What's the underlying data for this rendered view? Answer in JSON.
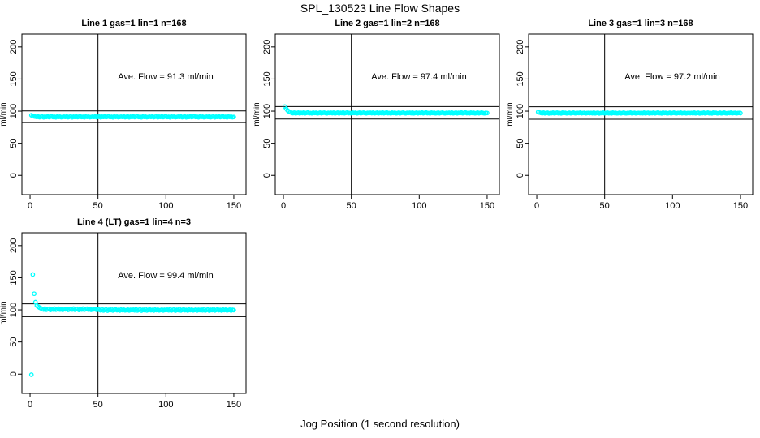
{
  "chart_data": {
    "type": "scatter",
    "title": "SPL_130523  Line Flow Shapes",
    "xlabel": "Jog Position (1 second resolution)",
    "ylabel": "ml/min",
    "point_color": "#00FFFF",
    "line_color": "#000000",
    "background_color": "#FFFFFF",
    "xlim": [
      -6,
      159
    ],
    "ylim": [
      -30,
      220
    ],
    "x_ticks": [
      0,
      50,
      100,
      150
    ],
    "y_ticks": [
      0,
      50,
      100,
      150,
      200
    ],
    "grid": false,
    "legend": "none",
    "panels": [
      {
        "title": "Line 1 gas=1 lin=1 n=168",
        "ave_label": "Ave. Flow =  91.3  ml/min",
        "ave_flow": 91.3,
        "vline_x": 50,
        "hlines": [
          100.4,
          82.2
        ],
        "x_start": 1,
        "x_step": 1,
        "y": [
          93.6,
          92.4,
          91.9,
          91.5,
          90.9,
          91.7,
          90.6,
          91.2,
          91.6,
          90.4,
          91.3,
          91.0,
          91.8,
          90.7,
          91.4,
          91.9,
          90.8,
          91.2,
          90.5,
          91.6,
          91.1,
          91.4,
          90.6,
          91.0,
          91.5,
          90.9,
          91.7,
          90.6,
          91.2,
          91.6,
          90.4,
          91.3,
          91.0,
          91.8,
          90.7,
          91.4,
          91.9,
          90.8,
          91.2,
          90.5,
          91.6,
          91.1,
          91.4,
          90.6,
          91.0,
          91.5,
          90.9,
          91.7,
          90.6,
          91.2,
          91.6,
          90.4,
          91.3,
          91.0,
          91.8,
          90.7,
          91.4,
          91.9,
          90.8,
          91.2,
          90.5,
          91.6,
          91.1,
          91.4,
          90.6,
          91.0,
          91.5,
          90.9,
          91.7,
          90.6,
          91.2,
          91.6,
          90.4,
          91.3,
          91.0,
          91.8,
          90.7,
          91.4,
          91.9,
          90.8,
          91.2,
          90.5,
          91.6,
          91.1,
          91.4,
          90.6,
          91.0,
          91.5,
          90.9,
          91.7,
          90.6,
          91.2,
          91.6,
          90.4,
          91.3,
          91.0,
          91.8,
          90.7,
          91.4,
          91.9,
          90.8,
          91.2,
          90.5,
          91.6,
          91.1,
          91.4,
          90.6,
          91.0,
          91.5,
          90.9,
          91.7,
          90.6,
          91.2,
          91.6,
          90.4,
          91.3,
          91.0,
          91.8,
          90.7,
          91.4,
          91.9,
          90.8,
          91.2,
          90.5,
          91.6,
          91.1,
          91.4,
          90.6,
          91.0,
          91.5,
          90.9,
          91.7,
          90.6,
          91.2,
          91.6,
          90.4,
          91.3,
          91.0,
          91.8,
          90.7,
          91.4,
          91.9,
          90.8,
          91.2,
          90.5,
          91.6,
          91.1,
          91.4,
          90.6,
          91.0
        ]
      },
      {
        "title": "Line 2 gas=1 lin=2 n=168",
        "ave_label": "Ave. Flow =  97.4  ml/min",
        "ave_flow": 97.4,
        "vline_x": 50,
        "hlines": [
          107.1,
          87.7
        ],
        "x_start": 1,
        "x_step": 1,
        "y": [
          107.2,
          103.8,
          101.2,
          99.6,
          98.4,
          97.5,
          96.9,
          97.8,
          96.7,
          97.2,
          97.7,
          96.6,
          97.4,
          97.0,
          97.9,
          96.8,
          97.3,
          98.0,
          96.9,
          97.2,
          96.6,
          97.7,
          97.1,
          97.5,
          96.7,
          97.0,
          97.6,
          96.8,
          97.3,
          97.8,
          97.0,
          96.7,
          97.4,
          97.1,
          97.5,
          96.9,
          97.8,
          96.7,
          97.2,
          97.7,
          96.6,
          97.4,
          97.0,
          97.9,
          96.8,
          97.3,
          98.0,
          96.9,
          97.2,
          96.6,
          97.7,
          97.1,
          97.5,
          96.7,
          97.0,
          97.6,
          96.8,
          97.3,
          97.8,
          97.0,
          96.7,
          97.4,
          97.1,
          97.5,
          96.9,
          97.8,
          96.7,
          97.2,
          97.7,
          96.6,
          97.4,
          97.0,
          97.9,
          96.8,
          97.3,
          98.0,
          96.9,
          97.2,
          96.6,
          97.7,
          97.1,
          97.5,
          96.7,
          97.0,
          97.6,
          96.8,
          97.3,
          97.8,
          97.0,
          96.7,
          97.4,
          97.1,
          97.5,
          96.9,
          97.8,
          96.7,
          97.2,
          97.7,
          96.6,
          97.4,
          97.0,
          97.9,
          96.8,
          97.3,
          98.0,
          96.9,
          97.2,
          96.6,
          97.7,
          97.1,
          97.5,
          96.7,
          97.0,
          97.6,
          96.8,
          97.3,
          97.8,
          97.0,
          96.7,
          97.4,
          97.1,
          97.5,
          96.9,
          97.8,
          96.7,
          97.2,
          97.7,
          96.6,
          97.4,
          97.0,
          97.9,
          96.8,
          97.3,
          98.0,
          96.9,
          97.2,
          96.6,
          97.7,
          97.1,
          97.5,
          96.7,
          97.0,
          97.6,
          96.8,
          97.3,
          97.8,
          97.0,
          96.7,
          97.4,
          97.1
        ]
      },
      {
        "title": "Line 3 gas=1 lin=3 n=168",
        "ave_label": "Ave. Flow =  97.2  ml/min",
        "ave_flow": 97.2,
        "vline_x": 50,
        "hlines": [
          106.9,
          87.5
        ],
        "x_start": 1,
        "x_step": 1,
        "y": [
          98.6,
          97.9,
          97.3,
          96.8,
          97.6,
          96.6,
          97.1,
          97.5,
          96.5,
          97.2,
          96.9,
          97.7,
          96.7,
          97.2,
          97.8,
          96.8,
          97.1,
          96.5,
          97.6,
          97.0,
          97.4,
          96.6,
          96.9,
          97.5,
          96.7,
          97.2,
          97.7,
          96.9,
          96.6,
          97.3,
          97.0,
          97.6,
          96.8,
          97.1,
          97.4,
          96.7,
          97.0,
          97.3,
          96.9,
          97.3,
          96.8,
          97.6,
          96.6,
          97.1,
          97.5,
          96.5,
          97.2,
          96.9,
          97.7,
          96.7,
          97.2,
          97.8,
          96.8,
          97.1,
          96.5,
          97.6,
          97.0,
          97.4,
          96.6,
          96.9,
          97.5,
          96.7,
          97.2,
          97.7,
          96.9,
          96.6,
          97.3,
          97.0,
          97.6,
          96.8,
          97.1,
          97.4,
          96.7,
          97.0,
          97.3,
          96.9,
          97.3,
          96.8,
          97.6,
          96.6,
          97.1,
          97.5,
          96.5,
          97.2,
          96.9,
          97.7,
          96.7,
          97.2,
          97.8,
          96.8,
          97.1,
          96.5,
          97.6,
          97.0,
          97.4,
          96.6,
          96.9,
          97.5,
          96.7,
          97.2,
          97.7,
          96.9,
          96.6,
          97.3,
          97.0,
          97.6,
          96.8,
          97.1,
          97.4,
          96.7,
          97.0,
          97.3,
          96.9,
          97.3,
          96.8,
          97.6,
          96.6,
          97.1,
          97.5,
          96.5,
          97.2,
          96.9,
          97.7,
          96.7,
          97.2,
          97.8,
          96.8,
          97.1,
          96.5,
          97.6,
          97.0,
          97.4,
          96.6,
          96.9,
          97.5,
          96.7,
          97.2,
          97.7,
          96.9,
          96.6,
          97.3,
          97.0,
          97.6,
          96.8,
          97.1,
          97.4,
          96.7,
          97.0,
          97.3,
          96.9
        ]
      },
      {
        "title": "Line 4 (LT) gas=1 lin=4 n=3",
        "ave_label": "Ave. Flow =  99.4  ml/min",
        "ave_flow": 99.4,
        "vline_x": 50,
        "hlines": [
          109.3,
          89.5
        ],
        "x_start": 1,
        "x_step": 1,
        "y": [
          -1.0,
          155.0,
          125.0,
          112.0,
          106.5,
          104.8,
          103.5,
          102.4,
          101.5,
          100.6,
          101.9,
          100.2,
          101.1,
          101.7,
          99.9,
          101.2,
          100.5,
          102.0,
          100.3,
          101.0,
          101.8,
          100.4,
          100.9,
          100.0,
          101.6,
          100.8,
          101.3,
          100.1,
          100.7,
          101.5,
          100.6,
          101.9,
          100.2,
          101.1,
          101.7,
          99.9,
          101.2,
          100.5,
          102.0,
          100.3,
          101.0,
          101.8,
          100.4,
          100.9,
          100.0,
          101.6,
          100.8,
          101.3,
          100.1,
          100.7,
          100.2,
          99.3,
          100.8,
          99.0,
          99.9,
          100.5,
          98.8,
          100.1,
          99.5,
          100.9,
          99.1,
          99.8,
          100.7,
          99.4,
          99.9,
          98.9,
          100.4,
          99.6,
          100.2,
          99.2,
          99.7,
          100.3,
          99.0,
          100.0,
          99.5,
          100.2,
          99.3,
          100.8,
          99.0,
          99.9,
          100.5,
          98.8,
          100.1,
          99.5,
          100.9,
          99.1,
          99.8,
          100.7,
          99.4,
          99.9,
          98.9,
          100.4,
          99.6,
          100.2,
          99.2,
          99.7,
          100.3,
          99.0,
          100.0,
          99.5,
          100.2,
          99.3,
          100.8,
          99.0,
          99.9,
          100.5,
          98.8,
          100.1,
          99.5,
          100.9,
          99.1,
          99.8,
          100.7,
          99.4,
          99.9,
          98.9,
          100.4,
          99.6,
          100.2,
          99.2,
          99.7,
          100.3,
          99.0,
          100.0,
          99.5,
          100.2,
          99.3,
          100.8,
          99.0,
          99.9,
          100.5,
          98.8,
          100.1,
          99.5,
          100.9,
          99.1,
          99.8,
          100.7,
          99.4,
          99.9,
          98.9,
          100.4,
          99.6,
          100.2,
          99.2,
          99.7,
          100.3,
          99.0,
          100.0,
          99.5
        ]
      }
    ]
  }
}
